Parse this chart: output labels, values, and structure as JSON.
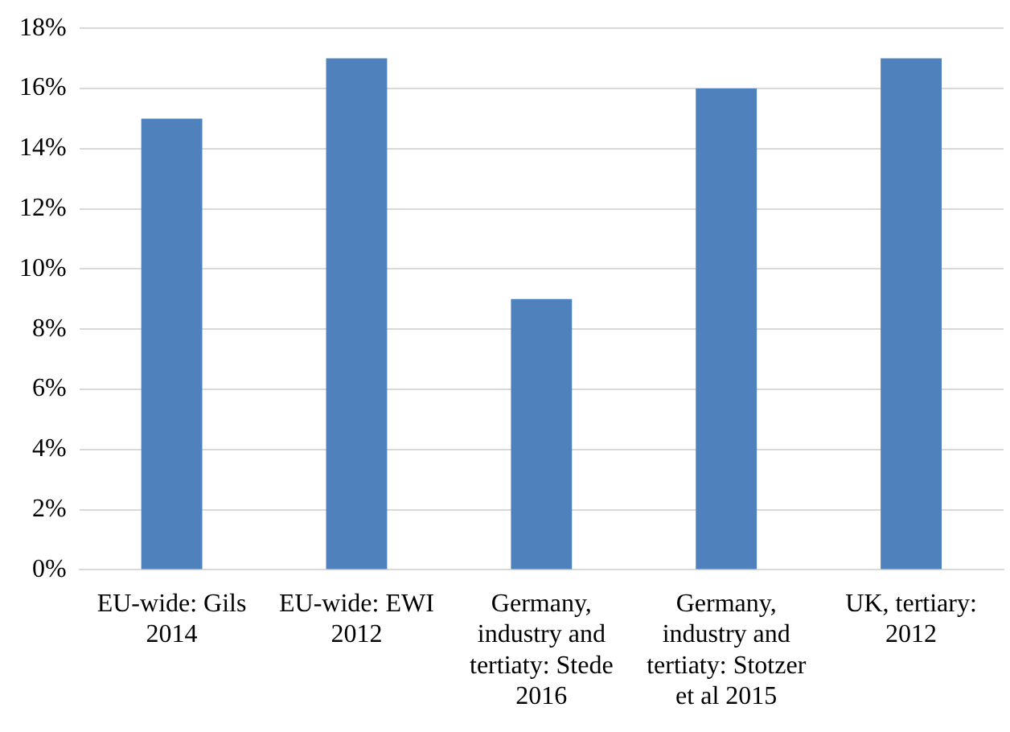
{
  "chart_data": {
    "type": "bar",
    "categories": [
      "EU-wide: Gils 2014",
      "EU-wide: EWI 2012",
      "Germany, industry and tertiaty: Stede 2016",
      "Germany, industry and tertiaty: Stotzer et al 2015",
      "UK, tertiary: 2012"
    ],
    "values": [
      15,
      17,
      9,
      16,
      17
    ],
    "color": "#4f81bd",
    "ylim": [
      0,
      18
    ],
    "yticks": [
      {
        "value": 0,
        "label": "0%"
      },
      {
        "value": 2,
        "label": "2%"
      },
      {
        "value": 4,
        "label": "4%"
      },
      {
        "value": 6,
        "label": "6%"
      },
      {
        "value": 8,
        "label": "8%"
      },
      {
        "value": 10,
        "label": "10%"
      },
      {
        "value": 12,
        "label": "12%"
      },
      {
        "value": 14,
        "label": "14%"
      },
      {
        "value": 16,
        "label": "16%"
      },
      {
        "value": 18,
        "label": "18%"
      }
    ],
    "grid": "y",
    "legend": false
  }
}
